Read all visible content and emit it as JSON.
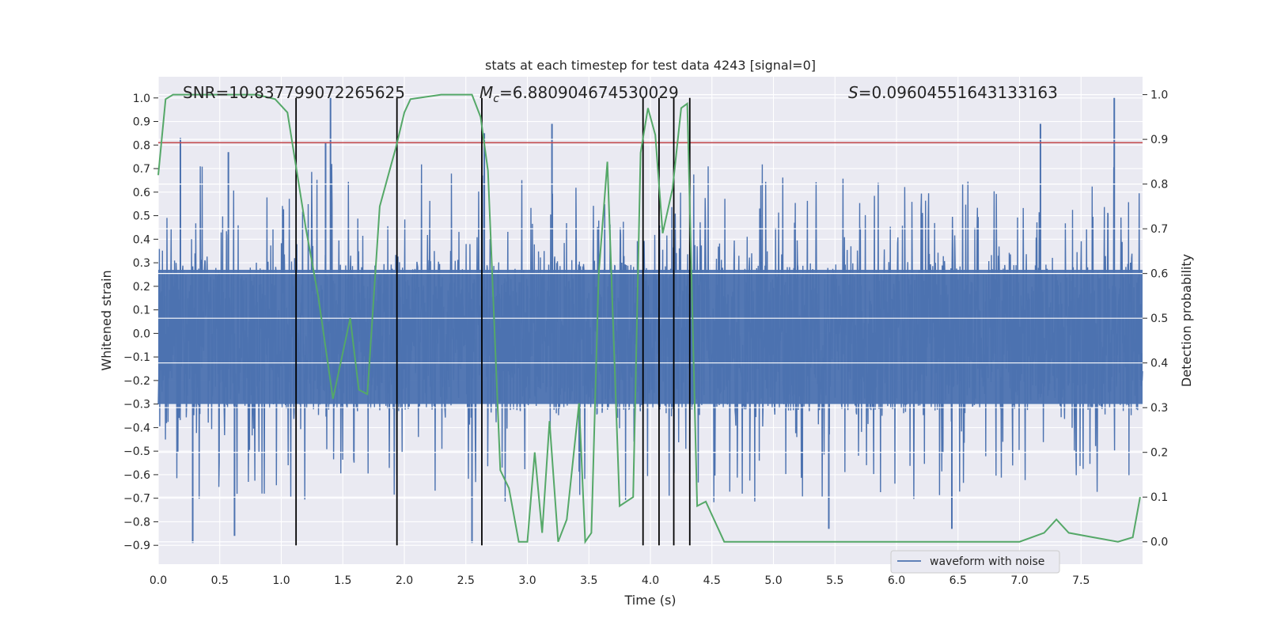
{
  "chart_data": {
    "type": "line",
    "title": "stats at each timestep for test data 4243 [signal=0]",
    "xlabel": "Time (s)",
    "ylabel_left": "Whitened strain",
    "ylabel_right": "Detection probability",
    "xlim": [
      0.0,
      8.0
    ],
    "ylim_left": [
      -0.98,
      1.09
    ],
    "ylim_right": [
      -0.05,
      1.04
    ],
    "x_ticks": [
      "0.0",
      "0.5",
      "1.0",
      "1.5",
      "2.0",
      "2.5",
      "3.0",
      "3.5",
      "4.0",
      "4.5",
      "5.0",
      "5.5",
      "6.0",
      "6.5",
      "7.0",
      "7.5"
    ],
    "y_ticks_left": [
      "1.0",
      "0.9",
      "0.8",
      "0.7",
      "0.6",
      "0.5",
      "0.4",
      "0.3",
      "0.2",
      "0.1",
      "0.0",
      "-0.1",
      "-0.2",
      "-0.3",
      "-0.4",
      "-0.5",
      "-0.6",
      "-0.7",
      "-0.8",
      "-0.9"
    ],
    "y_ticks_right": [
      "1.0",
      "0.9",
      "0.8",
      "0.7",
      "0.6",
      "0.5",
      "0.4",
      "0.3",
      "0.2",
      "0.1",
      "0.0"
    ],
    "grid": true,
    "legend_position": "bottom-right",
    "annotations": {
      "snr": "SNR=10.837799072265625",
      "mc_symbol": "M",
      "mc_sub": "c",
      "mc_value": "=6.880904674530029",
      "s_symbol": "S",
      "s_value": "=0.09604551643133163"
    },
    "threshold": {
      "value": 0.81,
      "axis": "left",
      "color": "#c44e52"
    },
    "vertical_lines": {
      "x": [
        1.12,
        1.94,
        2.63,
        3.94,
        4.07,
        4.19,
        4.32
      ],
      "ymin": -0.9,
      "ymax": 1.0,
      "color": "#000000"
    },
    "series": [
      {
        "name": "waveform with noise",
        "axis": "left",
        "color": "#4c72b0",
        "noise_envelope": {
          "typical_min": -0.33,
          "typical_max": 0.3,
          "peak_min": -0.89,
          "peak_max": 1.0
        },
        "notable_spikes": [
          {
            "x": 0.18,
            "y": 0.83
          },
          {
            "x": 0.28,
            "y": -0.89
          },
          {
            "x": 0.57,
            "y": 0.77
          },
          {
            "x": 0.62,
            "y": -0.86
          },
          {
            "x": 1.4,
            "y": 1.0
          },
          {
            "x": 1.36,
            "y": 0.81
          },
          {
            "x": 2.55,
            "y": -0.89
          },
          {
            "x": 2.65,
            "y": 0.85
          },
          {
            "x": 3.2,
            "y": 0.89
          },
          {
            "x": 5.45,
            "y": -0.83
          },
          {
            "x": 6.45,
            "y": -0.83
          },
          {
            "x": 7.17,
            "y": 0.89
          },
          {
            "x": 7.77,
            "y": 1.0
          }
        ]
      },
      {
        "name": "detection probability",
        "axis": "right",
        "color": "#55a868",
        "x": [
          0.0,
          0.06,
          0.12,
          0.25,
          0.5,
          0.6,
          0.8,
          0.95,
          1.05,
          1.2,
          1.3,
          1.42,
          1.56,
          1.63,
          1.7,
          1.8,
          1.88,
          1.93,
          2.0,
          2.05,
          2.3,
          2.55,
          2.62,
          2.68,
          2.78,
          2.85,
          2.93,
          3.0,
          3.06,
          3.12,
          3.18,
          3.25,
          3.32,
          3.42,
          3.47,
          3.52,
          3.58,
          3.65,
          3.75,
          3.86,
          3.92,
          3.98,
          4.04,
          4.1,
          4.18,
          4.25,
          4.3,
          4.38,
          4.45,
          4.6,
          4.8,
          5.5,
          6.0,
          6.5,
          7.0,
          7.2,
          7.3,
          7.4,
          7.6,
          7.8,
          7.92,
          7.98
        ],
        "y": [
          0.82,
          0.99,
          1.0,
          1.0,
          1.0,
          1.0,
          1.0,
          0.99,
          0.96,
          0.7,
          0.55,
          0.32,
          0.5,
          0.34,
          0.33,
          0.75,
          0.83,
          0.88,
          0.96,
          0.99,
          1.0,
          1.0,
          0.95,
          0.83,
          0.16,
          0.12,
          0.0,
          0.0,
          0.2,
          0.02,
          0.27,
          0.0,
          0.05,
          0.31,
          0.0,
          0.02,
          0.6,
          0.85,
          0.08,
          0.1,
          0.87,
          0.97,
          0.91,
          0.69,
          0.79,
          0.97,
          0.98,
          0.08,
          0.09,
          0.0,
          0.0,
          0.0,
          0.0,
          0.0,
          0.0,
          0.02,
          0.05,
          0.02,
          0.01,
          0.0,
          0.01,
          0.1
        ]
      }
    ]
  }
}
